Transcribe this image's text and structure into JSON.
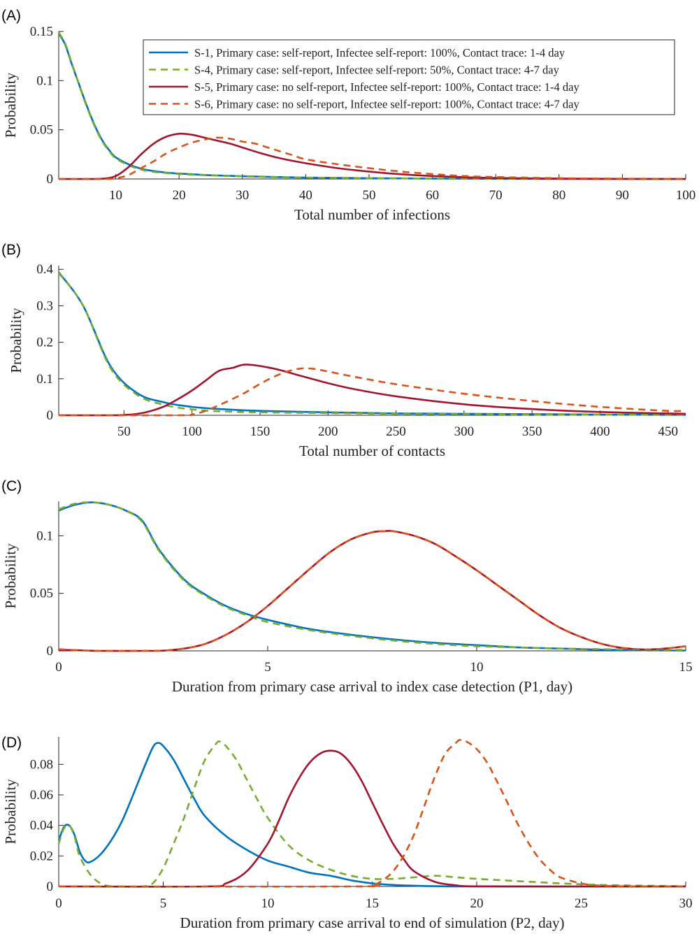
{
  "colors": {
    "S1": "#0072BD",
    "S4": "#77AC30",
    "S5": "#A2142F",
    "S6": "#D95319"
  },
  "legend": [
    {
      "key": "S1",
      "label": "S-1, Primary case: self-report, Infectee self-report: 100%, Contact trace: 1-4 day",
      "dash": false
    },
    {
      "key": "S4",
      "label": "S-4, Primary case: self-report, Infectee self-report: 50%, Contact trace: 4-7 day",
      "dash": true
    },
    {
      "key": "S5",
      "label": "S-5, Primary case: no self-report, Infectee self-report: 100%,  Contact trace: 1-4 day",
      "dash": false
    },
    {
      "key": "S6",
      "label": "S-6, Primary case: no self-report, Infectee self-report: 100%,  Contact trace: 4-7 day",
      "dash": true
    }
  ],
  "chart_data": [
    {
      "panel": "(A)",
      "type": "line",
      "xlabel": "Total number of infections",
      "ylabel": "Probability",
      "xlim": [
        1,
        100
      ],
      "ylim": [
        0,
        0.15
      ],
      "xticks": [
        10,
        20,
        30,
        40,
        50,
        60,
        70,
        80,
        90,
        100
      ],
      "yticks": [
        0,
        0.05,
        0.1,
        0.15
      ],
      "yticklabels": [
        "0",
        "0.05",
        "0.1",
        "0.15"
      ],
      "legend_position": "top-right",
      "series": [
        {
          "key": "S1",
          "x": [
            1,
            2,
            3,
            4,
            5,
            6,
            7,
            8,
            9,
            10,
            12,
            14,
            16,
            18,
            20,
            22,
            25,
            30,
            35,
            40,
            50,
            60,
            70,
            80,
            100
          ],
          "y": [
            0.148,
            0.137,
            0.118,
            0.1,
            0.082,
            0.065,
            0.05,
            0.038,
            0.029,
            0.022,
            0.015,
            0.0105,
            0.008,
            0.0065,
            0.0055,
            0.0048,
            0.0038,
            0.0028,
            0.002,
            0.0014,
            0.0008,
            0.0004,
            0.0002,
            0.0001,
            0
          ]
        },
        {
          "key": "S4",
          "x": [
            1,
            2,
            3,
            4,
            5,
            6,
            7,
            8,
            9,
            10,
            12,
            14,
            16,
            18,
            20,
            22,
            25,
            30,
            35,
            40,
            50,
            60,
            70,
            80,
            100
          ],
          "y": [
            0.149,
            0.138,
            0.119,
            0.1,
            0.081,
            0.064,
            0.049,
            0.037,
            0.028,
            0.021,
            0.014,
            0.0095,
            0.0072,
            0.006,
            0.005,
            0.0044,
            0.0036,
            0.0026,
            0.0018,
            0.0013,
            0.0008,
            0.0004,
            0.0002,
            0.0001,
            0
          ]
        },
        {
          "key": "S5",
          "x": [
            1,
            5,
            8,
            10,
            12,
            14,
            16,
            18,
            20,
            22,
            24,
            26,
            28,
            30,
            33,
            36,
            40,
            45,
            50,
            55,
            60,
            65,
            70,
            80,
            90,
            100
          ],
          "y": [
            0,
            0,
            0.0003,
            0.003,
            0.012,
            0.025,
            0.036,
            0.043,
            0.046,
            0.045,
            0.042,
            0.039,
            0.036,
            0.032,
            0.026,
            0.021,
            0.016,
            0.011,
            0.0075,
            0.0048,
            0.003,
            0.0018,
            0.001,
            0.0004,
            0.0001,
            0
          ]
        },
        {
          "key": "S6",
          "x": [
            1,
            8,
            10,
            12,
            14,
            16,
            18,
            20,
            22,
            24,
            26,
            28,
            30,
            32,
            34,
            36,
            38,
            40,
            45,
            50,
            55,
            60,
            65,
            70,
            80,
            90,
            100
          ],
          "y": [
            0,
            0,
            0.0007,
            0.004,
            0.011,
            0.018,
            0.026,
            0.032,
            0.037,
            0.04,
            0.042,
            0.041,
            0.038,
            0.036,
            0.032,
            0.028,
            0.024,
            0.02,
            0.015,
            0.011,
            0.0075,
            0.005,
            0.003,
            0.002,
            0.0008,
            0.0003,
            0.0001
          ]
        }
      ]
    },
    {
      "panel": "(B)",
      "type": "line",
      "xlabel": "Total number of contacts",
      "ylabel": "Probability",
      "xlim": [
        2,
        463
      ],
      "ylim": [
        0,
        0.41
      ],
      "xticks": [
        50,
        100,
        150,
        200,
        250,
        300,
        350,
        400,
        450
      ],
      "yticks": [
        0,
        0.1,
        0.2,
        0.3,
        0.4
      ],
      "yticklabels": [
        "0",
        "0.1",
        "0.2",
        "0.3",
        "0.4"
      ],
      "series": [
        {
          "key": "S1",
          "x": [
            2,
            20,
            40,
            60,
            80,
            100,
            120,
            150,
            200,
            250,
            300,
            350,
            400,
            463
          ],
          "y": [
            0.392,
            0.3,
            0.135,
            0.06,
            0.035,
            0.023,
            0.017,
            0.012,
            0.008,
            0.005,
            0.004,
            0.003,
            0.002,
            0.001
          ]
        },
        {
          "key": "S4",
          "x": [
            2,
            20,
            40,
            60,
            80,
            100,
            120,
            150,
            200,
            250,
            300,
            350,
            400,
            463
          ],
          "y": [
            0.39,
            0.3,
            0.13,
            0.055,
            0.028,
            0.016,
            0.011,
            0.008,
            0.006,
            0.004,
            0.003,
            0.002,
            0.0015,
            0.001
          ]
        },
        {
          "key": "S5",
          "x": [
            2,
            40,
            50,
            60,
            70,
            80,
            90,
            100,
            110,
            120,
            130,
            140,
            160,
            180,
            200,
            220,
            250,
            300,
            350,
            400,
            463
          ],
          "y": [
            0,
            0,
            0.001,
            0.004,
            0.012,
            0.025,
            0.045,
            0.068,
            0.095,
            0.122,
            0.13,
            0.139,
            0.128,
            0.108,
            0.088,
            0.071,
            0.052,
            0.03,
            0.017,
            0.009,
            0.004
          ]
        },
        {
          "key": "S6",
          "x": [
            2,
            90,
            100,
            110,
            120,
            130,
            140,
            150,
            160,
            170,
            180,
            190,
            200,
            220,
            250,
            300,
            350,
            400,
            450,
            463
          ],
          "y": [
            0,
            0,
            0.002,
            0.012,
            0.028,
            0.045,
            0.064,
            0.086,
            0.105,
            0.12,
            0.128,
            0.127,
            0.12,
            0.105,
            0.085,
            0.059,
            0.039,
            0.023,
            0.012,
            0.013
          ]
        }
      ]
    },
    {
      "panel": "(C)",
      "type": "line",
      "xlabel": "Duration from primary case arrival to index case detection (P1, day)",
      "ylabel": "Probability",
      "xlim": [
        0,
        15
      ],
      "ylim": [
        0,
        0.13
      ],
      "xticks": [
        0,
        5,
        10,
        15
      ],
      "yticks": [
        0,
        0.05,
        0.1
      ],
      "yticklabels": [
        "0",
        "0.05",
        "0.1"
      ],
      "series": [
        {
          "key": "S1",
          "x": [
            0,
            0.4,
            0.8,
            1.2,
            1.6,
            2,
            2.4,
            3,
            3.5,
            4,
            4.5,
            5,
            6,
            7,
            8,
            9,
            10,
            11,
            12,
            13,
            14,
            15
          ],
          "y": [
            0.122,
            0.127,
            0.129,
            0.127,
            0.122,
            0.113,
            0.088,
            0.062,
            0.049,
            0.039,
            0.032,
            0.027,
            0.019,
            0.014,
            0.01,
            0.007,
            0.005,
            0.003,
            0.002,
            0.001,
            0.0005,
            0.0003
          ]
        },
        {
          "key": "S4",
          "x": [
            0,
            0.4,
            0.8,
            1.2,
            1.6,
            2,
            2.4,
            3,
            3.5,
            4,
            4.5,
            5,
            6,
            7,
            8,
            9,
            10,
            11,
            12,
            13,
            14,
            15
          ],
          "y": [
            0.123,
            0.128,
            0.129,
            0.127,
            0.122,
            0.112,
            0.087,
            0.061,
            0.048,
            0.038,
            0.031,
            0.025,
            0.018,
            0.013,
            0.009,
            0.006,
            0.004,
            0.003,
            0.002,
            0.0015,
            0.001,
            0.0008
          ]
        },
        {
          "key": "S5",
          "x": [
            0,
            0.5,
            1,
            2,
            2.5,
            3,
            3.5,
            4,
            4.5,
            5,
            5.5,
            6,
            6.5,
            7,
            7.5,
            7.8,
            8,
            8.5,
            9,
            9.5,
            10,
            10.5,
            11,
            11.5,
            12,
            12.5,
            13,
            13.5,
            14,
            14.5,
            15
          ],
          "y": [
            0.001,
            0.0005,
            0,
            0,
            0.0002,
            0.002,
            0.006,
            0.014,
            0.025,
            0.039,
            0.055,
            0.071,
            0.086,
            0.097,
            0.103,
            0.104,
            0.104,
            0.1,
            0.093,
            0.082,
            0.07,
            0.057,
            0.044,
            0.031,
            0.02,
            0.012,
            0.006,
            0.0025,
            0.0012,
            0.002,
            0.004
          ]
        },
        {
          "key": "S6",
          "x": [
            0,
            0.5,
            1,
            2,
            2.5,
            3,
            3.5,
            4,
            4.5,
            5,
            5.5,
            6,
            6.5,
            7,
            7.5,
            7.8,
            8,
            8.5,
            9,
            9.5,
            10,
            10.5,
            11,
            11.5,
            12,
            12.5,
            13,
            13.5,
            14,
            14.5,
            15
          ],
          "y": [
            0.0015,
            0.0005,
            0,
            0,
            0.0002,
            0.002,
            0.006,
            0.014,
            0.025,
            0.039,
            0.055,
            0.071,
            0.086,
            0.097,
            0.103,
            0.104,
            0.104,
            0.1,
            0.093,
            0.082,
            0.07,
            0.057,
            0.044,
            0.031,
            0.02,
            0.012,
            0.006,
            0.0025,
            0.0012,
            0.002,
            0.004
          ]
        }
      ]
    },
    {
      "panel": "(D)",
      "type": "line",
      "xlabel": "Duration from primary case arrival to end of simulation (P2, day)",
      "ylabel": "Probability",
      "xlim": [
        0,
        30
      ],
      "ylim": [
        0,
        0.098
      ],
      "xticks": [
        0,
        5,
        10,
        15,
        20,
        25,
        30
      ],
      "yticks": [
        0,
        0.02,
        0.04,
        0.06,
        0.08
      ],
      "yticklabels": [
        "0",
        "0.02",
        "0.04",
        "0.06",
        "0.08"
      ],
      "series": [
        {
          "key": "S1",
          "x": [
            0,
            0.25,
            0.5,
            0.75,
            1,
            1.25,
            1.5,
            2,
            2.5,
            3,
            3.5,
            4,
            4.5,
            4.75,
            5,
            5.5,
            6,
            6.5,
            7,
            8,
            9,
            10,
            11,
            12,
            13,
            14,
            15,
            16,
            17,
            18,
            20,
            30
          ],
          "y": [
            0.03,
            0.039,
            0.04,
            0.034,
            0.023,
            0.017,
            0.016,
            0.021,
            0.03,
            0.042,
            0.058,
            0.075,
            0.091,
            0.094,
            0.092,
            0.083,
            0.07,
            0.057,
            0.046,
            0.033,
            0.024,
            0.017,
            0.013,
            0.009,
            0.007,
            0.004,
            0.002,
            0.001,
            0.0005,
            0.0002,
            0,
            0
          ]
        },
        {
          "key": "S4",
          "x": [
            0,
            0.25,
            0.5,
            0.75,
            1,
            1.5,
            2,
            2.5,
            3,
            4,
            4.5,
            5,
            5.5,
            6,
            6.5,
            7,
            7.5,
            7.7,
            8,
            8.5,
            9,
            9.5,
            10,
            11,
            12,
            13,
            14,
            15,
            16,
            17,
            18,
            19,
            20,
            22,
            24,
            26,
            28,
            30
          ],
          "y": [
            0.028,
            0.038,
            0.04,
            0.033,
            0.02,
            0.008,
            0.002,
            0,
            0,
            0,
            0.002,
            0.012,
            0.028,
            0.045,
            0.065,
            0.083,
            0.093,
            0.095,
            0.092,
            0.083,
            0.07,
            0.057,
            0.045,
            0.027,
            0.017,
            0.011,
            0.007,
            0.005,
            0.005,
            0.006,
            0.007,
            0.006,
            0.005,
            0.0035,
            0.002,
            0.001,
            0.0005,
            0.0002
          ]
        },
        {
          "key": "S5",
          "x": [
            0,
            7,
            8,
            9,
            10,
            10.5,
            11,
            11.5,
            12,
            12.5,
            13,
            13.5,
            14,
            14.5,
            15,
            15.5,
            16,
            16.5,
            17,
            18,
            19,
            20,
            25,
            30
          ],
          "y": [
            0,
            0,
            0.002,
            0.01,
            0.028,
            0.042,
            0.058,
            0.071,
            0.081,
            0.087,
            0.089,
            0.087,
            0.08,
            0.069,
            0.055,
            0.041,
            0.028,
            0.018,
            0.01,
            0.003,
            0.0008,
            0.0001,
            0,
            0
          ]
        },
        {
          "key": "S6",
          "x": [
            0,
            14,
            15,
            15.5,
            16,
            16.5,
            17,
            17.5,
            18,
            18.5,
            19,
            19.2,
            19.5,
            20,
            20.5,
            21,
            21.5,
            22,
            22.5,
            23,
            23.5,
            24,
            25,
            26,
            28,
            30
          ],
          "y": [
            0,
            0,
            0.001,
            0.004,
            0.01,
            0.02,
            0.034,
            0.053,
            0.072,
            0.087,
            0.094,
            0.096,
            0.095,
            0.09,
            0.081,
            0.068,
            0.054,
            0.04,
            0.028,
            0.018,
            0.011,
            0.006,
            0.002,
            0.0005,
            0,
            0
          ]
        }
      ]
    }
  ]
}
